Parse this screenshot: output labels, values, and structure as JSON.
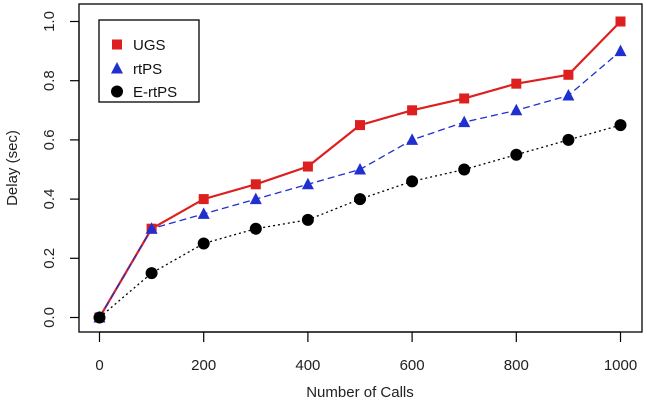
{
  "chart_data": {
    "type": "line",
    "title": "",
    "xlabel": "Number of Calls",
    "ylabel": "Delay (sec)",
    "xlim": [
      0,
      1000
    ],
    "ylim": [
      0,
      1
    ],
    "xticks": [
      0,
      200,
      400,
      600,
      800,
      1000
    ],
    "yticks": [
      0.0,
      0.2,
      0.4,
      0.6,
      0.8,
      1.0
    ],
    "xtick_labels": [
      "0",
      "200",
      "400",
      "600",
      "800",
      "1000"
    ],
    "ytick_labels": [
      "0.0",
      "0.2",
      "0.4",
      "0.6",
      "0.8",
      "1.0"
    ],
    "grid": false,
    "legend_position": "top-left",
    "x": [
      0,
      100,
      200,
      300,
      400,
      500,
      600,
      700,
      800,
      900,
      1000
    ],
    "series": [
      {
        "name": "UGS",
        "values": [
          0.0,
          0.3,
          0.4,
          0.45,
          0.51,
          0.65,
          0.7,
          0.74,
          0.79,
          0.82,
          1.0
        ],
        "color": "#dd1f1f",
        "marker": "square",
        "line_style": "solid"
      },
      {
        "name": "rtPS",
        "values": [
          0.0,
          0.3,
          0.35,
          0.4,
          0.45,
          0.5,
          0.6,
          0.66,
          0.7,
          0.75,
          0.9
        ],
        "color": "#1f2fd0",
        "marker": "triangle",
        "line_style": "dashed"
      },
      {
        "name": "E-rtPS",
        "values": [
          0.0,
          0.15,
          0.25,
          0.3,
          0.33,
          0.4,
          0.46,
          0.5,
          0.55,
          0.6,
          0.65
        ],
        "color": "#000000",
        "marker": "circle",
        "line_style": "dotted"
      }
    ]
  }
}
